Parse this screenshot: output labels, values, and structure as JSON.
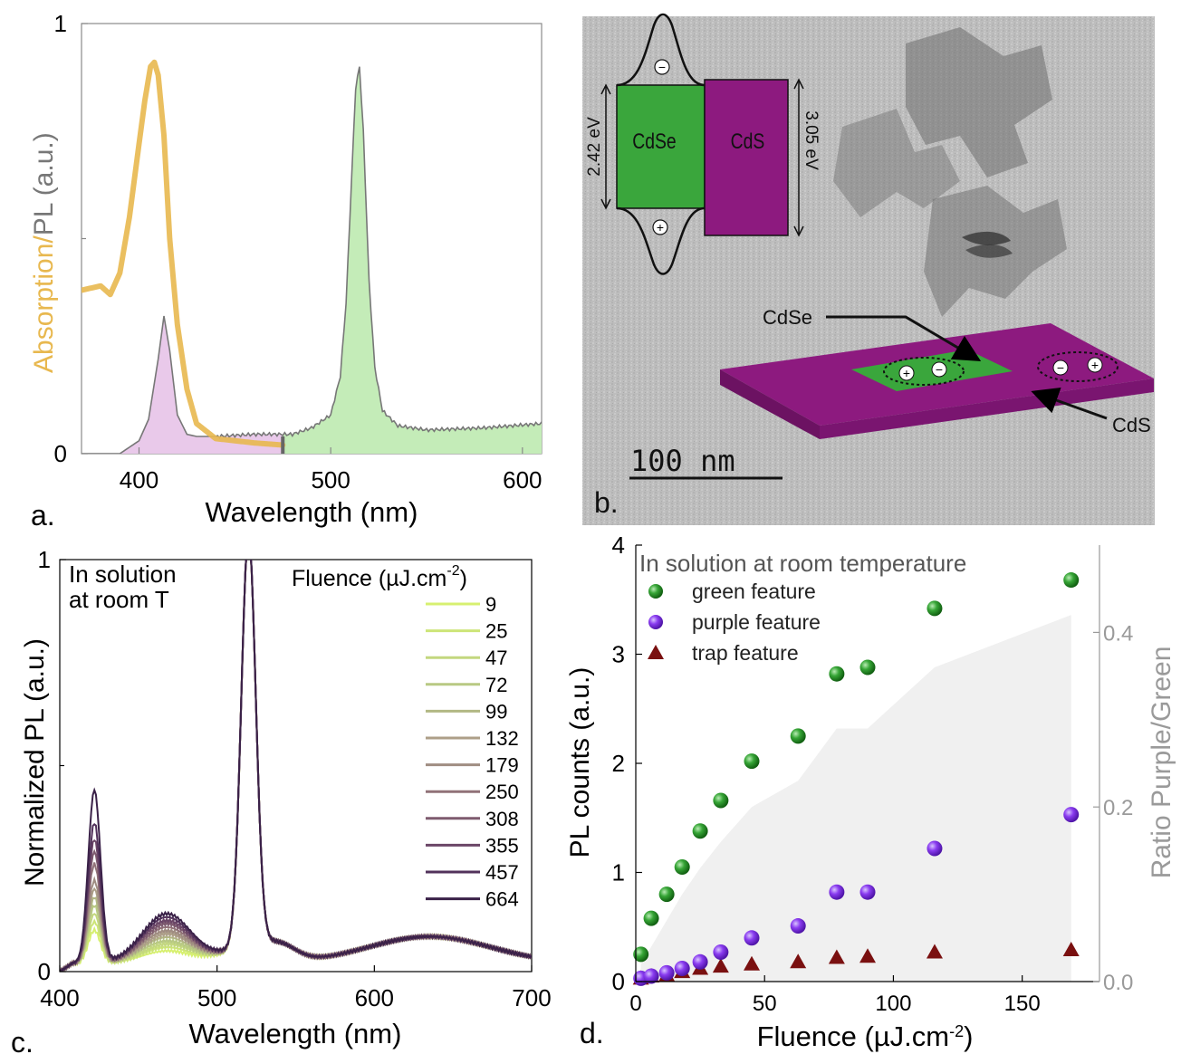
{
  "colors": {
    "absorption": "#e8b84f",
    "pl_line": "#777777",
    "pl_purple_fill": "#e9c9ea",
    "pl_green_fill": "#c4ecb8",
    "cdse_green": "#3aa63c",
    "cds_purple": "#8d1a7f",
    "green_marker": "#2e9a2e",
    "purple_marker": "#8a3cf0",
    "trap_marker": "#7a1010",
    "ratio_fill": "#f0f0f0",
    "ratio_axis": "#9a9a9a"
  },
  "panel_a": {
    "label": "a.",
    "ylabel_part1": "Absorption",
    "ylabel_sep": "/",
    "ylabel_part2": "PL (a.u.)",
    "xlabel": "Wavelength (nm)",
    "yticks": [
      "0",
      "1"
    ],
    "xticks": [
      "400",
      "500",
      "600"
    ]
  },
  "panel_b": {
    "label": "b.",
    "gap_left": "2.42 eV",
    "gap_right": "3.05 eV",
    "cdse_text": "CdSe",
    "cds_text": "CdS",
    "minus": "−",
    "plus": "+",
    "arrow_label_cdse": "CdSe",
    "arrow_label_cds": "CdS",
    "scalebar": "100 nm"
  },
  "panel_c": {
    "label": "c.",
    "annotation_line1": "In solution",
    "annotation_line2": "at room T",
    "legend_title": "Fluence (µJ.cm",
    "legend_title_sup": "-2",
    "legend_title_end": ")",
    "ylabel": "Normalized PL (a.u.)",
    "xlabel": "Wavelength (nm)",
    "yticks": [
      "0",
      "1"
    ],
    "xticks": [
      "400",
      "500",
      "600",
      "700"
    ]
  },
  "panel_d": {
    "label": "d.",
    "title": "In solution at room temperature",
    "legend": [
      "green feature",
      "purple feature",
      "trap feature"
    ],
    "ylabel": "PL counts (a.u.)",
    "y2label": "Ratio Purple/Green",
    "xlabel": "Fluence (µJ.cm",
    "xlabel_sup": "-2",
    "xlabel_end": ")",
    "yticks": [
      "0",
      "1",
      "2",
      "3",
      "4"
    ],
    "y2ticks": [
      "0.0",
      "0.2",
      "0.4"
    ],
    "xticks": [
      "0",
      "50",
      "100",
      "150"
    ]
  },
  "chart_data": [
    {
      "panel": "a",
      "type": "line",
      "xlabel": "Wavelength (nm)",
      "ylabel": "Absorption/PL (a.u.)",
      "xlim": [
        370,
        610
      ],
      "ylim": [
        0,
        1
      ],
      "series": [
        {
          "name": "Absorption",
          "x": [
            370,
            380,
            385,
            390,
            395,
            400,
            403,
            406,
            408,
            410,
            413,
            416,
            420,
            425,
            430,
            440,
            450,
            460,
            475
          ],
          "y": [
            0.38,
            0.39,
            0.37,
            0.42,
            0.55,
            0.72,
            0.82,
            0.9,
            0.91,
            0.88,
            0.74,
            0.5,
            0.3,
            0.15,
            0.07,
            0.035,
            0.03,
            0.025,
            0.02
          ]
        },
        {
          "name": "PL",
          "x": [
            370,
            390,
            400,
            405,
            410,
            413,
            416,
            420,
            425,
            430,
            440,
            460,
            480,
            490,
            500,
            505,
            508,
            511,
            513,
            515,
            517,
            520,
            523,
            527,
            535,
            550,
            580,
            610
          ],
          "y": [
            0.0,
            0.0,
            0.03,
            0.08,
            0.22,
            0.32,
            0.24,
            0.09,
            0.045,
            0.04,
            0.04,
            0.045,
            0.045,
            0.06,
            0.09,
            0.18,
            0.35,
            0.65,
            0.85,
            0.9,
            0.75,
            0.4,
            0.2,
            0.1,
            0.065,
            0.055,
            0.06,
            0.07
          ]
        }
      ]
    },
    {
      "panel": "c",
      "type": "line",
      "xlabel": "Wavelength (nm)",
      "ylabel": "Normalized PL (a.u.)",
      "xlim": [
        400,
        700
      ],
      "ylim": [
        0,
        1
      ],
      "legend_title": "Fluence (µJ.cm-2)",
      "legend_placement": "top-right",
      "series": [
        {
          "name": "9",
          "peak1": 0.08,
          "color": "#d7f070"
        },
        {
          "name": "25",
          "peak1": 0.1,
          "color": "#cde578"
        },
        {
          "name": "47",
          "peak1": 0.12,
          "color": "#c3d77f"
        },
        {
          "name": "72",
          "peak1": 0.14,
          "color": "#b8c983"
        },
        {
          "name": "99",
          "peak1": 0.16,
          "color": "#b2b884"
        },
        {
          "name": "132",
          "peak1": 0.18,
          "color": "#ad9f88"
        },
        {
          "name": "179",
          "peak1": 0.2,
          "color": "#a08d82"
        },
        {
          "name": "250",
          "peak1": 0.24,
          "color": "#917278"
        },
        {
          "name": "308",
          "peak1": 0.27,
          "color": "#7e5b6f"
        },
        {
          "name": "355",
          "peak1": 0.3,
          "color": "#6b4667"
        },
        {
          "name": "457",
          "peak1": 0.34,
          "color": "#52325b"
        },
        {
          "name": "664",
          "peak1": 0.42,
          "color": "#3a2148"
        }
      ]
    },
    {
      "panel": "d",
      "type": "scatter",
      "xlabel": "Fluence (µJ.cm-2)",
      "ylabel": "PL counts (a.u.)",
      "y2label": "Ratio Purple/Green",
      "xlim": [
        0,
        180
      ],
      "ylim": [
        0,
        4
      ],
      "y2lim": [
        0,
        0.5
      ],
      "x": [
        2,
        6,
        12,
        18,
        25,
        33,
        45,
        63,
        78,
        90,
        116,
        169
      ],
      "series": [
        {
          "name": "green feature",
          "values": [
            0.25,
            0.58,
            0.8,
            1.05,
            1.38,
            1.66,
            2.02,
            2.25,
            2.82,
            2.88,
            3.42,
            3.68
          ]
        },
        {
          "name": "purple feature",
          "values": [
            0.03,
            0.05,
            0.08,
            0.12,
            0.18,
            0.27,
            0.4,
            0.51,
            0.82,
            0.82,
            1.22,
            1.53
          ]
        },
        {
          "name": "trap feature",
          "values": [
            0.03,
            0.05,
            0.06,
            0.09,
            0.12,
            0.14,
            0.16,
            0.18,
            0.22,
            0.23,
            0.27,
            0.29
          ]
        }
      ],
      "ratio_area": {
        "x": [
          2,
          6,
          12,
          18,
          25,
          33,
          45,
          63,
          78,
          90,
          116,
          169
        ],
        "y": [
          0.02,
          0.04,
          0.07,
          0.1,
          0.13,
          0.16,
          0.2,
          0.23,
          0.29,
          0.29,
          0.36,
          0.42
        ]
      }
    }
  ]
}
